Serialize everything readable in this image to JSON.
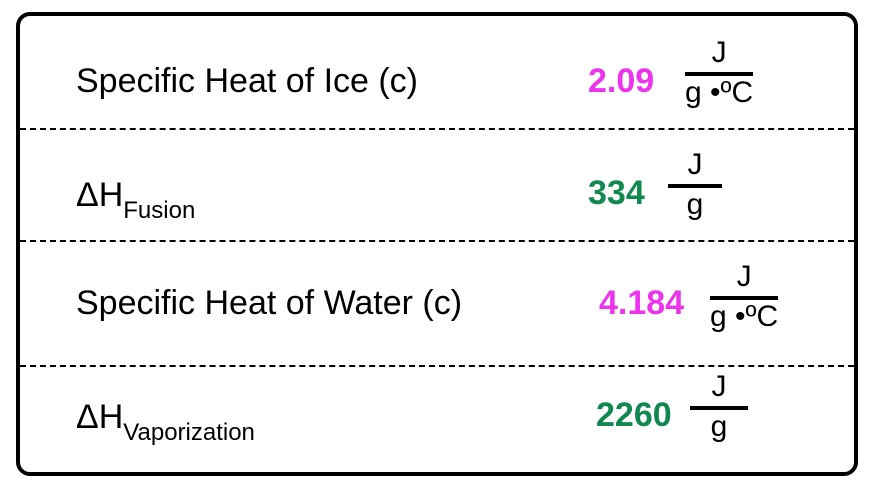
{
  "colors": {
    "pink": "#ee33ee",
    "green": "#108850"
  },
  "rows": [
    {
      "label": "Specific Heat of Ice (c)",
      "value": "2.09",
      "value_color": "pink",
      "unit_num": "J",
      "unit_den": "g •ºC"
    },
    {
      "label_main": "ΔH",
      "label_sub": "Fusion",
      "value": "334",
      "value_color": "green",
      "unit_num": "J",
      "unit_den": "g"
    },
    {
      "label": "Specific Heat of Water (c)",
      "value": "4.184",
      "value_color": "pink",
      "unit_num": "J",
      "unit_den": "g •ºC"
    },
    {
      "label_main": "ΔH",
      "label_sub": "Vaporization",
      "value": "2260",
      "value_color": "green",
      "unit_num": "J",
      "unit_den": "g"
    }
  ]
}
